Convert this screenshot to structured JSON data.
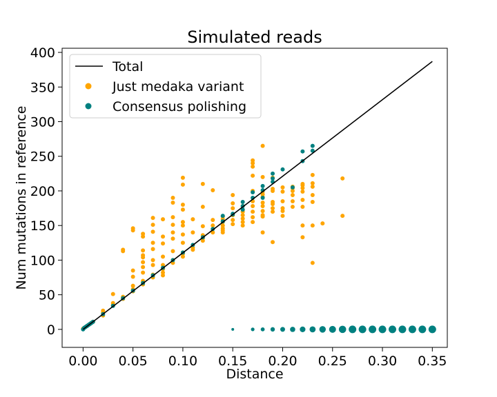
{
  "chart_data": {
    "type": "scatter",
    "title": "Simulated reads",
    "xlabel": "Distance",
    "ylabel": "Num mutations in reference",
    "xlim": [
      -0.021,
      0.365
    ],
    "ylim": [
      -26,
      406
    ],
    "xticks": [
      0.0,
      0.05,
      0.1,
      0.15,
      0.2,
      0.25,
      0.3,
      0.35
    ],
    "xtick_labels": [
      "0.00",
      "0.05",
      "0.10",
      "0.15",
      "0.20",
      "0.25",
      "0.30",
      "0.35"
    ],
    "yticks": [
      0,
      50,
      100,
      150,
      200,
      250,
      300,
      350,
      400
    ],
    "ytick_labels": [
      "0",
      "50",
      "100",
      "150",
      "200",
      "250",
      "300",
      "350",
      "400"
    ],
    "grid": false,
    "legend_position": "top-left",
    "series": [
      {
        "name": "Total",
        "kind": "line",
        "color": "#000000",
        "x": [
          0.0,
          0.35
        ],
        "y": [
          0,
          387
        ]
      },
      {
        "name": "Just medaka variant",
        "kind": "scatter",
        "color": "#ffa500",
        "points": [
          [
            0.0,
            1
          ],
          [
            0.002,
            3
          ],
          [
            0.004,
            5
          ],
          [
            0.006,
            7
          ],
          [
            0.008,
            9
          ],
          [
            0.01,
            11
          ],
          [
            0.02,
            20
          ],
          [
            0.02,
            24
          ],
          [
            0.02,
            27
          ],
          [
            0.03,
            35
          ],
          [
            0.03,
            38
          ],
          [
            0.03,
            51
          ],
          [
            0.04,
            44
          ],
          [
            0.04,
            45
          ],
          [
            0.04,
            47
          ],
          [
            0.04,
            113
          ],
          [
            0.04,
            115
          ],
          [
            0.05,
            55
          ],
          [
            0.05,
            58
          ],
          [
            0.05,
            63
          ],
          [
            0.05,
            76
          ],
          [
            0.05,
            85
          ],
          [
            0.05,
            143
          ],
          [
            0.05,
            146
          ],
          [
            0.06,
            65
          ],
          [
            0.06,
            68
          ],
          [
            0.06,
            70
          ],
          [
            0.06,
            82
          ],
          [
            0.06,
            90
          ],
          [
            0.06,
            97
          ],
          [
            0.06,
            104
          ],
          [
            0.06,
            107
          ],
          [
            0.06,
            114
          ],
          [
            0.06,
            134
          ],
          [
            0.06,
            138
          ],
          [
            0.07,
            75
          ],
          [
            0.07,
            79
          ],
          [
            0.07,
            93
          ],
          [
            0.07,
            100
          ],
          [
            0.07,
            116
          ],
          [
            0.07,
            125
          ],
          [
            0.07,
            141
          ],
          [
            0.07,
            151
          ],
          [
            0.07,
            161
          ],
          [
            0.08,
            78
          ],
          [
            0.08,
            82
          ],
          [
            0.08,
            87
          ],
          [
            0.08,
            93
          ],
          [
            0.08,
            105
          ],
          [
            0.08,
            124
          ],
          [
            0.08,
            134
          ],
          [
            0.08,
            159
          ],
          [
            0.09,
            96
          ],
          [
            0.09,
            100
          ],
          [
            0.09,
            113
          ],
          [
            0.09,
            131
          ],
          [
            0.09,
            140
          ],
          [
            0.09,
            151
          ],
          [
            0.09,
            162
          ],
          [
            0.09,
            183
          ],
          [
            0.09,
            190
          ],
          [
            0.1,
            105
          ],
          [
            0.1,
            109
          ],
          [
            0.1,
            111
          ],
          [
            0.1,
            125
          ],
          [
            0.1,
            137
          ],
          [
            0.1,
            150
          ],
          [
            0.1,
            155
          ],
          [
            0.1,
            173
          ],
          [
            0.1,
            180
          ],
          [
            0.1,
            209
          ],
          [
            0.1,
            219
          ],
          [
            0.11,
            115
          ],
          [
            0.11,
            118
          ],
          [
            0.11,
            140
          ],
          [
            0.11,
            159
          ],
          [
            0.12,
            128
          ],
          [
            0.12,
            132
          ],
          [
            0.12,
            136
          ],
          [
            0.12,
            149
          ],
          [
            0.12,
            177
          ],
          [
            0.12,
            210
          ],
          [
            0.13,
            140
          ],
          [
            0.13,
            150
          ],
          [
            0.13,
            158
          ],
          [
            0.13,
            201
          ],
          [
            0.14,
            140
          ],
          [
            0.14,
            143
          ],
          [
            0.14,
            146
          ],
          [
            0.14,
            150
          ],
          [
            0.14,
            155
          ],
          [
            0.14,
            159
          ],
          [
            0.14,
            163
          ],
          [
            0.15,
            152
          ],
          [
            0.15,
            158
          ],
          [
            0.15,
            165
          ],
          [
            0.15,
            175
          ],
          [
            0.15,
            182
          ],
          [
            0.15,
            194
          ],
          [
            0.16,
            150
          ],
          [
            0.16,
            155
          ],
          [
            0.16,
            160
          ],
          [
            0.16,
            165
          ],
          [
            0.16,
            170
          ],
          [
            0.16,
            178
          ],
          [
            0.17,
            155
          ],
          [
            0.17,
            162
          ],
          [
            0.17,
            170
          ],
          [
            0.17,
            178
          ],
          [
            0.17,
            185
          ],
          [
            0.17,
            200
          ],
          [
            0.17,
            222
          ],
          [
            0.17,
            235
          ],
          [
            0.17,
            240
          ],
          [
            0.17,
            244
          ],
          [
            0.18,
            140
          ],
          [
            0.18,
            163
          ],
          [
            0.18,
            165
          ],
          [
            0.18,
            171
          ],
          [
            0.18,
            178
          ],
          [
            0.18,
            183
          ],
          [
            0.18,
            191
          ],
          [
            0.18,
            195
          ],
          [
            0.18,
            199
          ],
          [
            0.18,
            220
          ],
          [
            0.18,
            265
          ],
          [
            0.19,
            126
          ],
          [
            0.19,
            170
          ],
          [
            0.19,
            175
          ],
          [
            0.19,
            181
          ],
          [
            0.19,
            184
          ],
          [
            0.19,
            200
          ],
          [
            0.19,
            203
          ],
          [
            0.19,
            219
          ],
          [
            0.2,
            164
          ],
          [
            0.2,
            171
          ],
          [
            0.2,
            175
          ],
          [
            0.2,
            185
          ],
          [
            0.2,
            199
          ],
          [
            0.2,
            205
          ],
          [
            0.21,
            177
          ],
          [
            0.21,
            185
          ],
          [
            0.21,
            194
          ],
          [
            0.21,
            200
          ],
          [
            0.21,
            204
          ],
          [
            0.21,
            206
          ],
          [
            0.22,
            133
          ],
          [
            0.22,
            150
          ],
          [
            0.22,
            177
          ],
          [
            0.22,
            187
          ],
          [
            0.22,
            199
          ],
          [
            0.22,
            204
          ],
          [
            0.22,
            208
          ],
          [
            0.22,
            210
          ],
          [
            0.23,
            96
          ],
          [
            0.23,
            150
          ],
          [
            0.23,
            184
          ],
          [
            0.23,
            194
          ],
          [
            0.23,
            206
          ],
          [
            0.23,
            211
          ],
          [
            0.23,
            223
          ],
          [
            0.24,
            153
          ],
          [
            0.26,
            164
          ],
          [
            0.26,
            218
          ]
        ]
      },
      {
        "name": "Consensus polishing",
        "kind": "scatter",
        "color": "#008080",
        "points": [
          [
            0.0,
            0
          ],
          [
            0.001,
            2
          ],
          [
            0.002,
            3
          ],
          [
            0.003,
            4
          ],
          [
            0.004,
            5
          ],
          [
            0.005,
            6
          ],
          [
            0.006,
            7
          ],
          [
            0.007,
            8
          ],
          [
            0.008,
            9
          ],
          [
            0.009,
            10
          ],
          [
            0.01,
            11
          ],
          [
            0.02,
            22
          ],
          [
            0.03,
            34
          ],
          [
            0.04,
            45
          ],
          [
            0.05,
            56
          ],
          [
            0.06,
            67
          ],
          [
            0.07,
            78
          ],
          [
            0.08,
            89
          ],
          [
            0.09,
            100
          ],
          [
            0.1,
            111
          ],
          [
            0.11,
            122
          ],
          [
            0.12,
            133
          ],
          [
            0.13,
            145
          ],
          [
            0.14,
            156
          ],
          [
            0.15,
            167
          ],
          [
            0.16,
            178
          ],
          [
            0.17,
            190
          ],
          [
            0.14,
            164
          ],
          [
            0.15,
            166
          ],
          [
            0.16,
            173
          ],
          [
            0.16,
            184
          ],
          [
            0.17,
            198
          ],
          [
            0.18,
            190
          ],
          [
            0.18,
            201
          ],
          [
            0.18,
            207
          ],
          [
            0.19,
            213
          ],
          [
            0.19,
            218
          ],
          [
            0.19,
            225
          ],
          [
            0.2,
            231
          ],
          [
            0.21,
            205
          ],
          [
            0.22,
            243
          ],
          [
            0.22,
            257
          ],
          [
            0.23,
            258
          ],
          [
            0.23,
            265
          ],
          [
            0.15,
            0
          ],
          [
            0.17,
            0
          ],
          [
            0.18,
            0
          ],
          [
            0.19,
            0
          ],
          [
            0.2,
            0
          ],
          [
            0.21,
            0
          ],
          [
            0.22,
            0
          ],
          [
            0.23,
            0
          ],
          [
            0.24,
            0
          ],
          [
            0.25,
            0
          ],
          [
            0.26,
            0
          ],
          [
            0.27,
            0
          ],
          [
            0.28,
            0
          ],
          [
            0.29,
            0
          ],
          [
            0.3,
            0
          ],
          [
            0.31,
            0
          ],
          [
            0.32,
            0
          ],
          [
            0.33,
            0
          ],
          [
            0.34,
            0
          ],
          [
            0.35,
            0
          ]
        ]
      }
    ]
  }
}
